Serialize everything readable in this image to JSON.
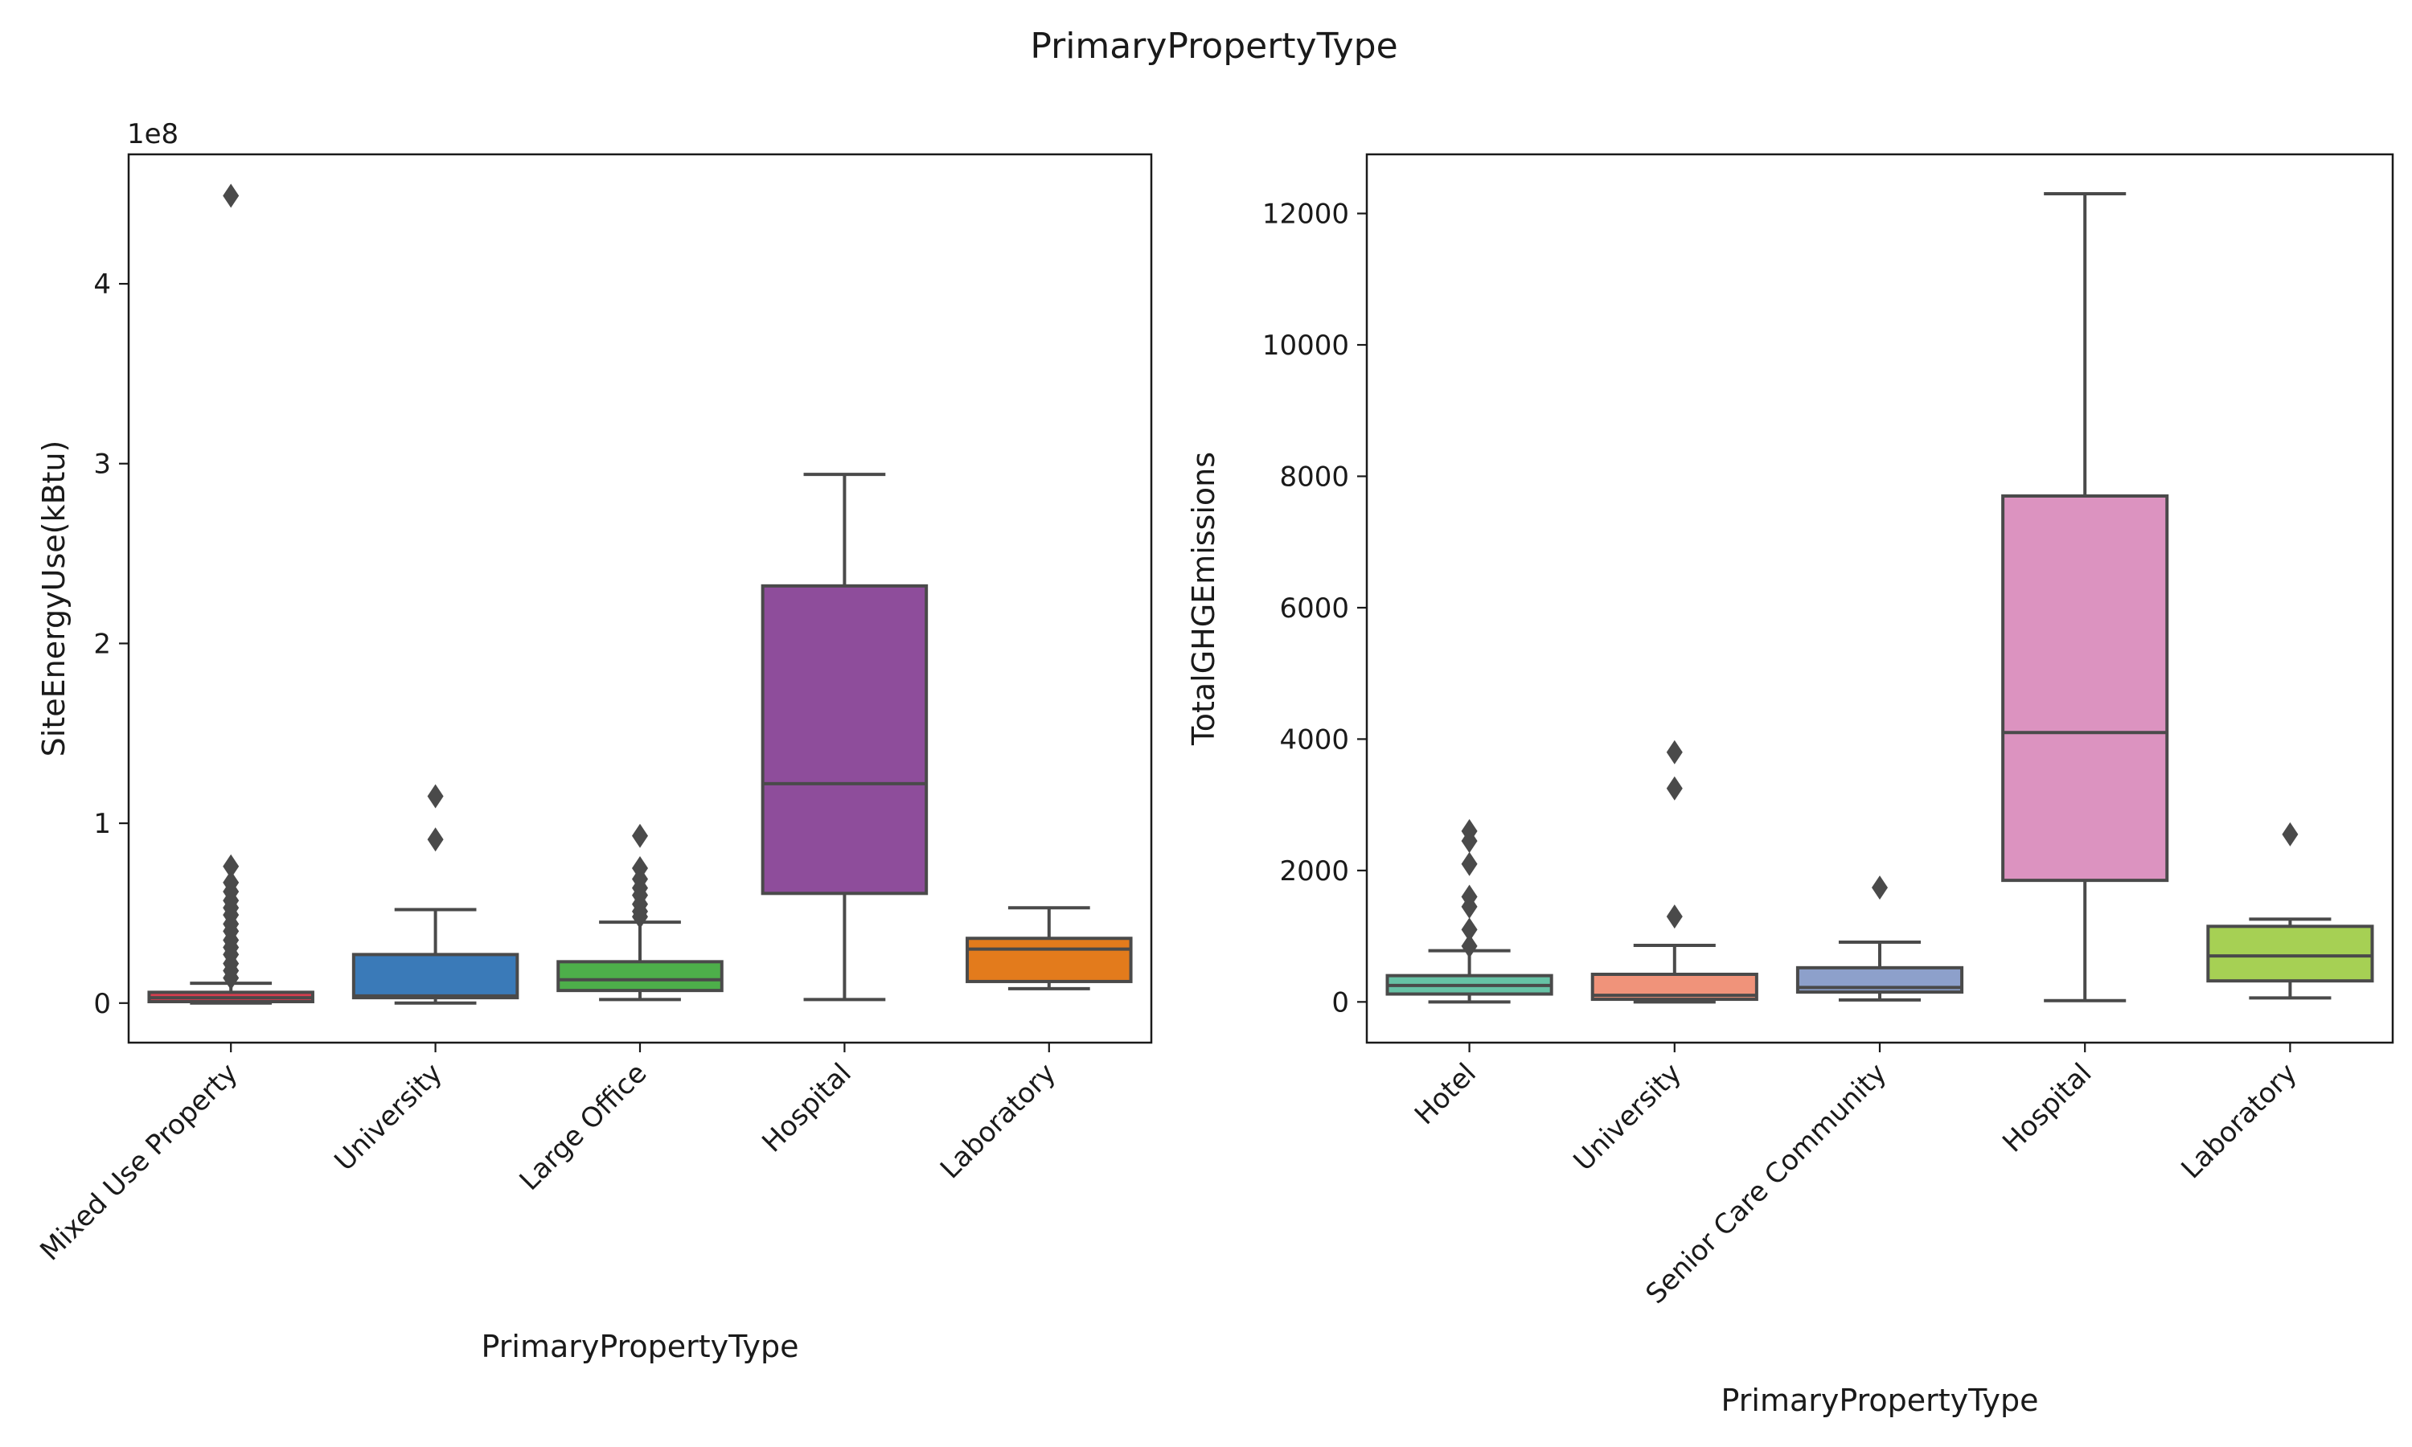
{
  "figure_title": "PrimaryPropertyType",
  "chart_data": [
    {
      "type": "box",
      "xlabel": "PrimaryPropertyType",
      "ylabel": "SiteEnergyUse(kBtu)",
      "y_offset_label": "1e8",
      "y_scale_factor": 100000000,
      "ylim": [
        -22000000,
        472000000
      ],
      "yticks": [
        0,
        100000000,
        200000000,
        300000000,
        400000000
      ],
      "ytick_labels": [
        "0",
        "1",
        "2",
        "3",
        "4"
      ],
      "categories": [
        "Mixed Use Property",
        "University",
        "Large Office",
        "Hospital",
        "Laboratory"
      ],
      "boxes": [
        {
          "category": "Mixed Use Property",
          "color": "#d53e4f",
          "whisker_low": 0,
          "q1": 800000,
          "median": 3000000,
          "q3": 6000000,
          "whisker_high": 11000000,
          "fliers": [
            14000000,
            18000000,
            22000000,
            27000000,
            31000000,
            35000000,
            40000000,
            44000000,
            49000000,
            53000000,
            57000000,
            62000000,
            67000000,
            76000000,
            449000000
          ]
        },
        {
          "category": "University",
          "color": "#3a7ab8",
          "whisker_low": 0,
          "q1": 3000000,
          "median": 4000000,
          "q3": 27000000,
          "whisker_high": 52000000,
          "fliers": [
            91000000,
            115000000
          ]
        },
        {
          "category": "Large Office",
          "color": "#4daf4a",
          "whisker_low": 2000000,
          "q1": 7000000,
          "median": 13000000,
          "q3": 23000000,
          "whisker_high": 45000000,
          "fliers": [
            48000000,
            51000000,
            55000000,
            60000000,
            64000000,
            69000000,
            75000000,
            93000000
          ]
        },
        {
          "category": "Hospital",
          "color": "#8e4d9b",
          "whisker_low": 2000000,
          "q1": 61000000,
          "median": 122000000,
          "q3": 232000000,
          "whisker_high": 294000000,
          "fliers": []
        },
        {
          "category": "Laboratory",
          "color": "#e37b1c",
          "whisker_low": 8000000,
          "q1": 12000000,
          "median": 30000000,
          "q3": 36000000,
          "whisker_high": 53000000,
          "fliers": []
        }
      ]
    },
    {
      "type": "box",
      "xlabel": "PrimaryPropertyType",
      "ylabel": "TotalGHGEmissions",
      "ylim": [
        -620,
        12900
      ],
      "yticks": [
        0,
        2000,
        4000,
        6000,
        8000,
        10000,
        12000
      ],
      "ytick_labels": [
        "0",
        "2000",
        "4000",
        "6000",
        "8000",
        "10000",
        "12000"
      ],
      "categories": [
        "Hotel",
        "University",
        "Senior Care Community",
        "Hospital",
        "Laboratory"
      ],
      "boxes": [
        {
          "category": "Hotel",
          "color": "#66c2a5",
          "whisker_low": 0,
          "q1": 120,
          "median": 250,
          "q3": 400,
          "whisker_high": 780,
          "fliers": [
            850,
            1100,
            1450,
            1600,
            2100,
            2450,
            2600
          ]
        },
        {
          "category": "University",
          "color": "#f0937a",
          "whisker_low": 0,
          "q1": 40,
          "median": 100,
          "q3": 420,
          "whisker_high": 860,
          "fliers": [
            1300,
            3250,
            3800
          ]
        },
        {
          "category": "Senior Care Community",
          "color": "#8da0cb",
          "whisker_low": 30,
          "q1": 150,
          "median": 220,
          "q3": 520,
          "whisker_high": 910,
          "fliers": [
            1740
          ]
        },
        {
          "category": "Hospital",
          "color": "#dc93c0",
          "whisker_low": 20,
          "q1": 1850,
          "median": 4100,
          "q3": 7700,
          "whisker_high": 12300,
          "fliers": []
        },
        {
          "category": "Laboratory",
          "color": "#a6d054",
          "whisker_low": 60,
          "q1": 320,
          "median": 700,
          "q3": 1150,
          "whisker_high": 1260,
          "fliers": [
            2550
          ]
        }
      ]
    }
  ]
}
